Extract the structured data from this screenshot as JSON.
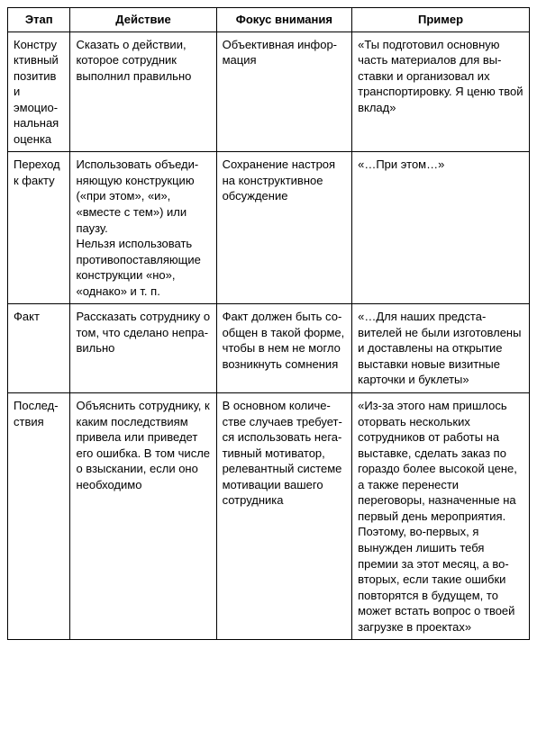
{
  "table": {
    "columns": [
      "Этап",
      "Действие",
      "Фокус внимания",
      "Пример"
    ],
    "rows": [
      {
        "stage": "Конструк­тивный позитив и эмоцио­нальная оценка",
        "action": "Сказать о действии, кото­рое сотрудник выполнил правильно",
        "focus": "Объективная инфор­мация",
        "example": "«Ты подготовил основную часть материалов для вы­ставки и организовал их транспортировку. Я ценю твой вклад»"
      },
      {
        "stage": "Переход к факту",
        "action": "Использовать объеди­няющую конструкцию («при этом», «и», «вместе с тем») или паузу.\nНельзя использовать противопоставляющие конструкции «но», «однако» и т. п.",
        "focus": "Сохранение настроя на конструктивное обсуждение",
        "example": "«…При этом…»"
      },
      {
        "stage": "Факт",
        "action": "Рассказать сотруднику о том, что сделано непра­вильно",
        "focus": "Факт должен быть со­общен в такой форме, чтобы в нем не могло возникнуть сомнения",
        "example": "«…Для наших предста­вителей не были изго­товлены и доставлены на открытие выставки новые визитные карточки и буклеты»"
      },
      {
        "stage": "Послед­ствия",
        "action": "Объяснить сотруднику, к каким последствиям привела или приведет его ошибка. В том числе о взыскании, если оно необходимо",
        "focus": "В основном количе­стве случаев требует­ся использовать нега­тивный мотиватор, релевантный системе мотивации вашего сотрудника",
        "example": "«Из-за этого нам пришлось оторвать нескольких сотрудников от работы на выставке, сделать заказ по гораздо более высокой цене, а также перенести переговоры, назначенные на первый день меропри­ятия. Поэтому, во-первых, я вынужден лишить тебя премии за этот месяц, а во-вторых, если такие ошибки повторятся в буду­щем, то может встать вопрос о твоей загрузке в проектах»"
      }
    ],
    "border_color": "#000000",
    "background_color": "#ffffff",
    "font_size": 13,
    "header_font_weight": "bold"
  }
}
